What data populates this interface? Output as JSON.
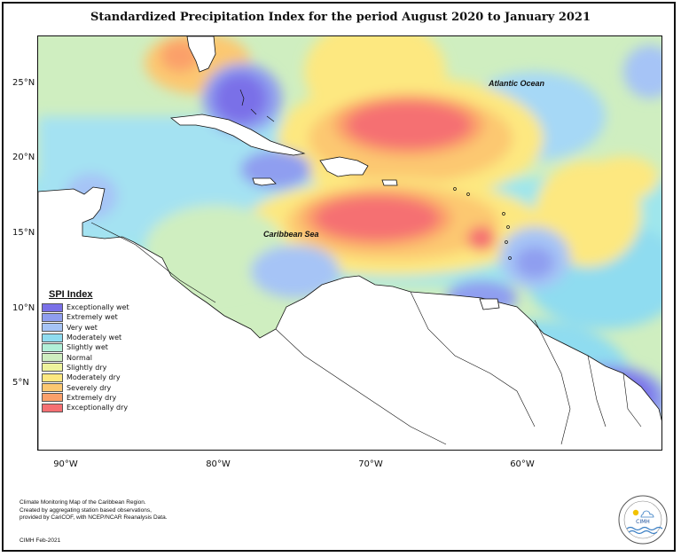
{
  "title": "Standardized Precipitation Index for the period August 2020 to January 2021",
  "lat_labels": [
    "25°N",
    "20°N",
    "15°N",
    "10°N",
    "5°N"
  ],
  "lon_labels": [
    "90°W",
    "80°W",
    "70°W",
    "60°W"
  ],
  "map_labels": {
    "atlantic": "Atlantic Ocean",
    "caribbean": "Caribbean Sea"
  },
  "legend": {
    "title": "SPI Index",
    "items": [
      {
        "label": "Exceptionally wet",
        "color": "#7a70e8"
      },
      {
        "label": "Extremely wet",
        "color": "#8f9ef0"
      },
      {
        "label": "Very wet",
        "color": "#a6c4f6"
      },
      {
        "label": "Moderately wet",
        "color": "#8fdcf0"
      },
      {
        "label": "Slightly wet",
        "color": "#b2f0d8"
      },
      {
        "label": "Normal",
        "color": "#cfeec0"
      },
      {
        "label": "Slightly dry",
        "color": "#eef39c"
      },
      {
        "label": "Moderately dry",
        "color": "#fde880"
      },
      {
        "label": "Severely dry",
        "color": "#fcc871"
      },
      {
        "label": "Extremely dry",
        "color": "#fba06a"
      },
      {
        "label": "Exceptionally dry",
        "color": "#f56f72"
      }
    ]
  },
  "footer": {
    "line1": "Climate Monitoring Map of the Caribbean Region.",
    "line2": "Created by aggregating station based observations,",
    "line3": "provided by CariCOF, with NCEP/NCAR Reanalysis Data.",
    "credit": "CIMH Feb-2021"
  },
  "logo": {
    "text": "CIMH"
  }
}
